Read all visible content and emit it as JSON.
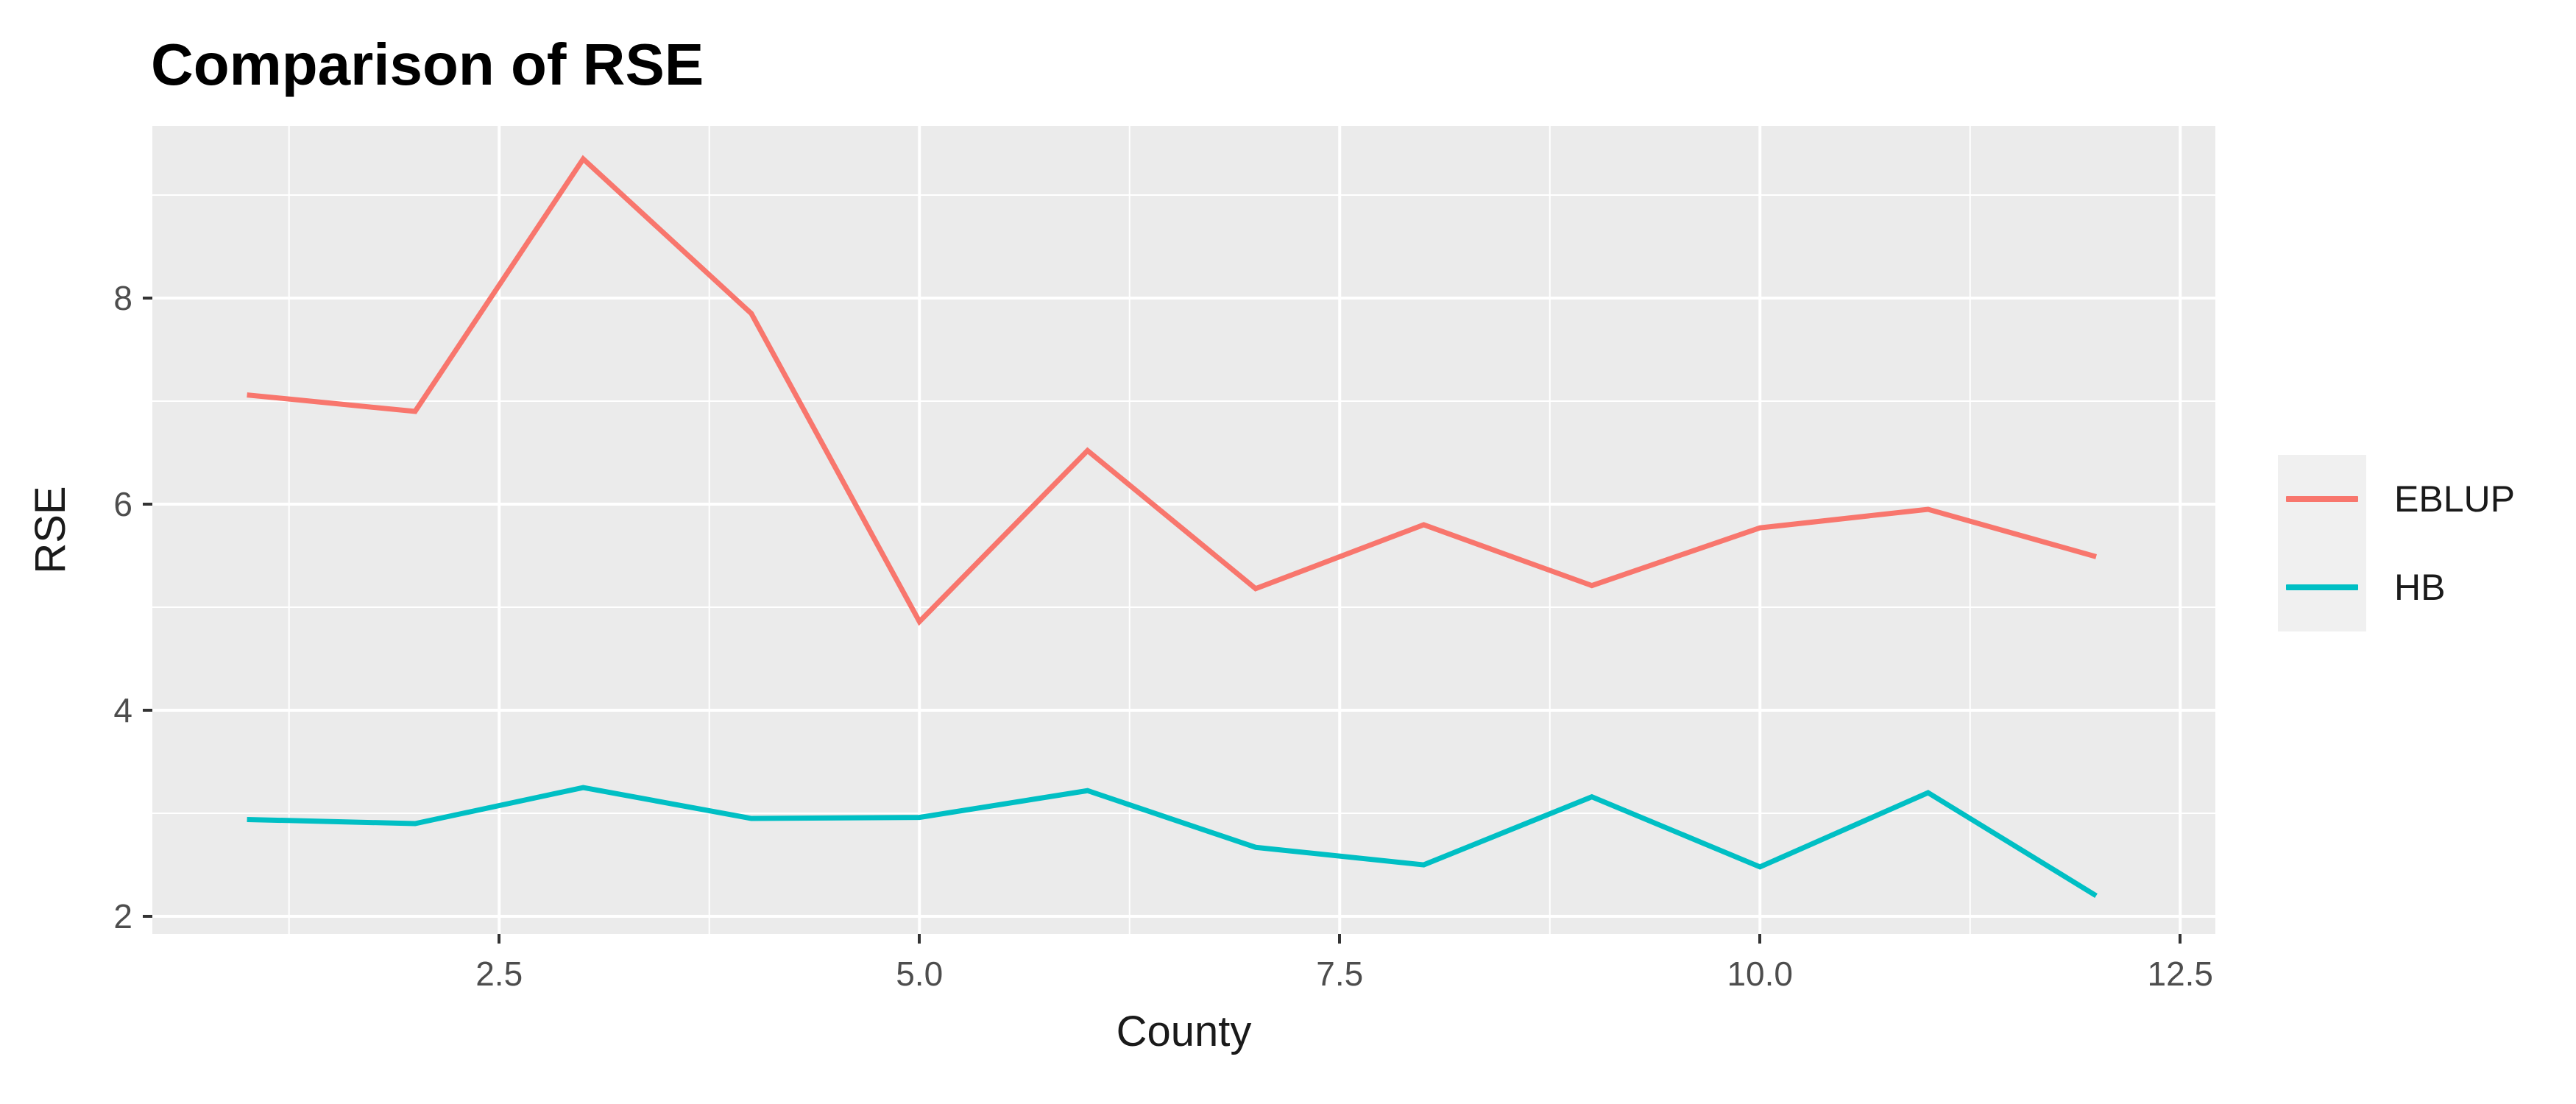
{
  "title": "Comparison of RSE",
  "chart_data": {
    "type": "line",
    "title": "Comparison of RSE",
    "xlabel": "County",
    "ylabel": "RSE",
    "x": [
      1,
      2,
      3,
      4,
      5,
      6,
      7,
      8,
      9,
      10,
      11,
      12
    ],
    "series": [
      {
        "name": "EBLUP",
        "color": "#F8766D",
        "values": [
          7.06,
          6.9,
          9.35,
          7.85,
          4.86,
          6.52,
          5.18,
          5.8,
          5.21,
          5.77,
          5.95,
          5.49
        ]
      },
      {
        "name": "HB",
        "color": "#00BFC4",
        "values": [
          2.94,
          2.9,
          3.25,
          2.95,
          2.96,
          3.22,
          2.67,
          2.5,
          3.16,
          2.48,
          3.2,
          2.2
        ]
      }
    ],
    "x_ticks": {
      "values": [
        2.5,
        5.0,
        7.5,
        10.0,
        12.5
      ],
      "labels": [
        "2.5",
        "5.0",
        "7.5",
        "10.0",
        "12.5"
      ]
    },
    "y_ticks": {
      "values": [
        2,
        4,
        6,
        8
      ],
      "labels": [
        "2",
        "4",
        "6",
        "8"
      ]
    },
    "x_minor_ticks": [
      1.25,
      3.75,
      6.25,
      8.75,
      11.25
    ],
    "y_minor_ticks": [
      3,
      5,
      7,
      9
    ],
    "xlim": [
      0.437,
      12.709
    ],
    "ylim": [
      1.829,
      9.671
    ],
    "grid": true,
    "legend_position": "right",
    "panel_background": "#EBEBEB",
    "grid_color": "#FFFFFF",
    "tick_color": "#333333",
    "tick_label_color": "#4d4d4d"
  }
}
